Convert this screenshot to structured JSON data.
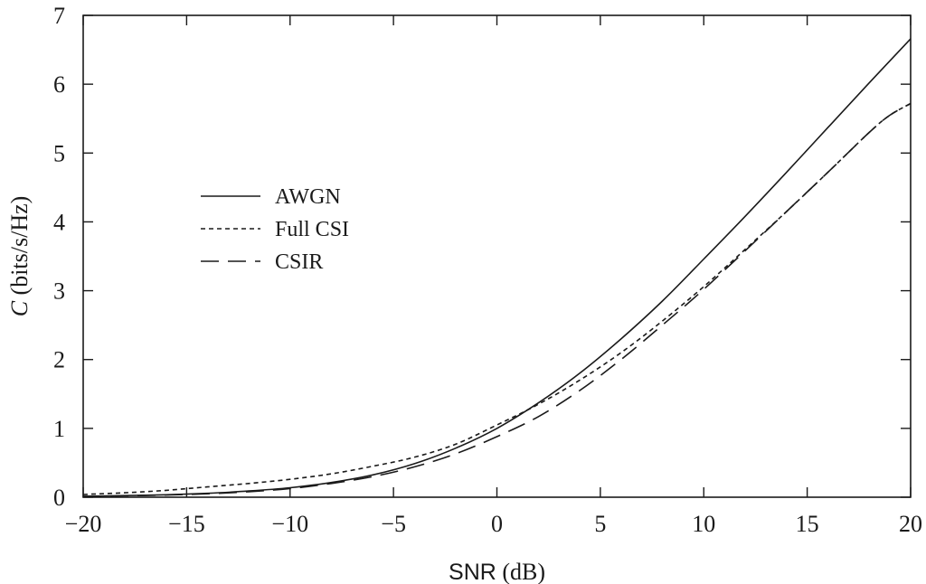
{
  "chart_data": {
    "type": "line",
    "title": "",
    "xlabel": {
      "prefix": "SNR",
      "suffix": " (dB)"
    },
    "ylabel": {
      "symbol": "C",
      "suffix": " (bits/s/Hz)"
    },
    "xlim": [
      -20,
      20
    ],
    "ylim": [
      0,
      7
    ],
    "xticks": [
      -20,
      -15,
      -10,
      -5,
      0,
      5,
      10,
      15,
      20
    ],
    "yticks": [
      0,
      1,
      2,
      3,
      4,
      5,
      6,
      7
    ],
    "xtick_labels": [
      "−20",
      "−15",
      "−10",
      "−5",
      "0",
      "5",
      "10",
      "15",
      "20"
    ],
    "ytick_labels": [
      "0",
      "1",
      "2",
      "3",
      "4",
      "5",
      "6",
      "7"
    ],
    "grid": false,
    "legend_position": "left-middle",
    "color": "#1a1a1a",
    "series": [
      {
        "name": "AWGN",
        "style": "solid",
        "x": [
          -20,
          -18,
          -16,
          -14,
          -12,
          -10,
          -8,
          -6,
          -4,
          -2,
          0,
          2,
          4,
          6,
          8,
          10,
          12,
          14,
          16,
          18,
          20
        ],
        "y": [
          0.014,
          0.023,
          0.036,
          0.057,
          0.09,
          0.138,
          0.214,
          0.324,
          0.486,
          0.712,
          1.0,
          1.37,
          1.8,
          2.3,
          2.85,
          3.46,
          4.08,
          4.72,
          5.37,
          6.02,
          6.66
        ]
      },
      {
        "name": "Full CSI",
        "style": "dotted",
        "x": [
          -20,
          -18,
          -16,
          -14,
          -12,
          -10,
          -8,
          -6,
          -4,
          -2,
          0,
          2,
          4,
          6,
          8,
          10,
          12,
          14,
          16,
          18,
          19,
          20
        ],
        "y": [
          0.04,
          0.065,
          0.1,
          0.15,
          0.2,
          0.26,
          0.34,
          0.45,
          0.58,
          0.77,
          1.05,
          1.35,
          1.7,
          2.1,
          2.56,
          3.06,
          3.6,
          4.15,
          4.72,
          5.3,
          5.55,
          5.72
        ]
      },
      {
        "name": "CSIR",
        "style": "dashed",
        "x": [
          -20,
          -18,
          -16,
          -14,
          -12,
          -10,
          -8,
          -6,
          -4,
          -2,
          0,
          2,
          4,
          6,
          8,
          10,
          12,
          14,
          16,
          18,
          19,
          20
        ],
        "y": [
          0.012,
          0.02,
          0.032,
          0.05,
          0.08,
          0.125,
          0.2,
          0.3,
          0.44,
          0.63,
          0.88,
          1.17,
          1.55,
          2.0,
          2.5,
          3.02,
          3.58,
          4.15,
          4.72,
          5.3,
          5.55,
          5.72
        ]
      }
    ]
  }
}
